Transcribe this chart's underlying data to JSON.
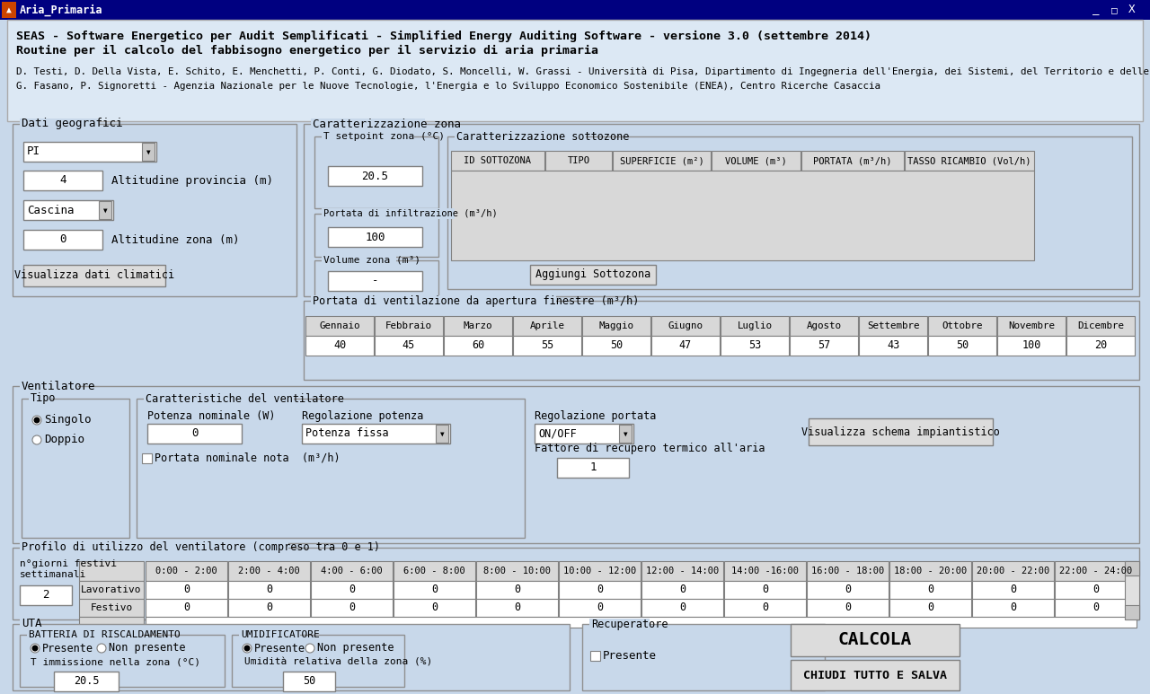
{
  "title_line1": "SEAS - Software Energetico per Audit Semplificati - Simplified Energy Auditing Software - versione 3.0 (settembre 2014)",
  "title_line2": "Routine per il calcolo del fabbisogno energetico per il servizio di aria primaria",
  "author_line1": "D. Testi, D. Della Vista, E. Schito, E. Menchetti, P. Conti, G. Diodato, S. Moncelli, W. Grassi - Università di Pisa, Dipartimento di Ingegneria dell'Energia, dei Sistemi, del Territorio e delle Costruzioni (DESTEC)",
  "author_line2": "G. Fasano, P. Signoretti - Agenzia Nazionale per le Nuove Tecnologie, l'Energia e lo Sviluppo Economico Sostenibile (ENEA), Centro Ricerche Casaccia",
  "bg_color": "#c8d8ea",
  "header_bg": "#dce8f4",
  "white": "#ffffff",
  "gray_box": "#c8c8c8",
  "table_header_bg": "#d8d8d8",
  "table_body_bg": "#e0e0e0",
  "border_color": "#808080",
  "text_color": "#000000",
  "window_title": "Aria_Primaria",
  "titlebar_color": "#000080",
  "months": [
    "Gennaio",
    "Febbraio",
    "Marzo",
    "Aprile",
    "Maggio",
    "Giugno",
    "Luglio",
    "Agosto",
    "Settembre",
    "Ottobre",
    "Novembre",
    "Dicembre"
  ],
  "month_values": [
    "40",
    "45",
    "60",
    "55",
    "50",
    "47",
    "53",
    "57",
    "43",
    "50",
    "100",
    "20"
  ],
  "fan_profile_headers": [
    "0:00 - 2:00",
    "2:00 - 4:00",
    "4:00 - 6:00",
    "6:00 - 8:00",
    "8:00 - 10:00",
    "10:00 - 12:00",
    "12:00 - 14:00",
    "14:00 -16:00",
    "16:00 - 18:00",
    "18:00 - 20:00",
    "20:00 - 22:00",
    "22:00 - 24:00"
  ],
  "lavorativo_values": [
    "0",
    "0",
    "0",
    "0",
    "0",
    "0",
    "0",
    "0",
    "0",
    "0",
    "0",
    "0"
  ],
  "festivo_values": [
    "0",
    "0",
    "0",
    "0",
    "0",
    "0",
    "0",
    "0",
    "0",
    "0",
    "0",
    "0"
  ],
  "table_cols": [
    "ID SOTTOZONA",
    "TIPO",
    "SUPERFICIE (m²)",
    "VOLUME (m³)",
    "PORTATA (m³/h)",
    "TASSO RICAMBIO (Vol/h)"
  ]
}
